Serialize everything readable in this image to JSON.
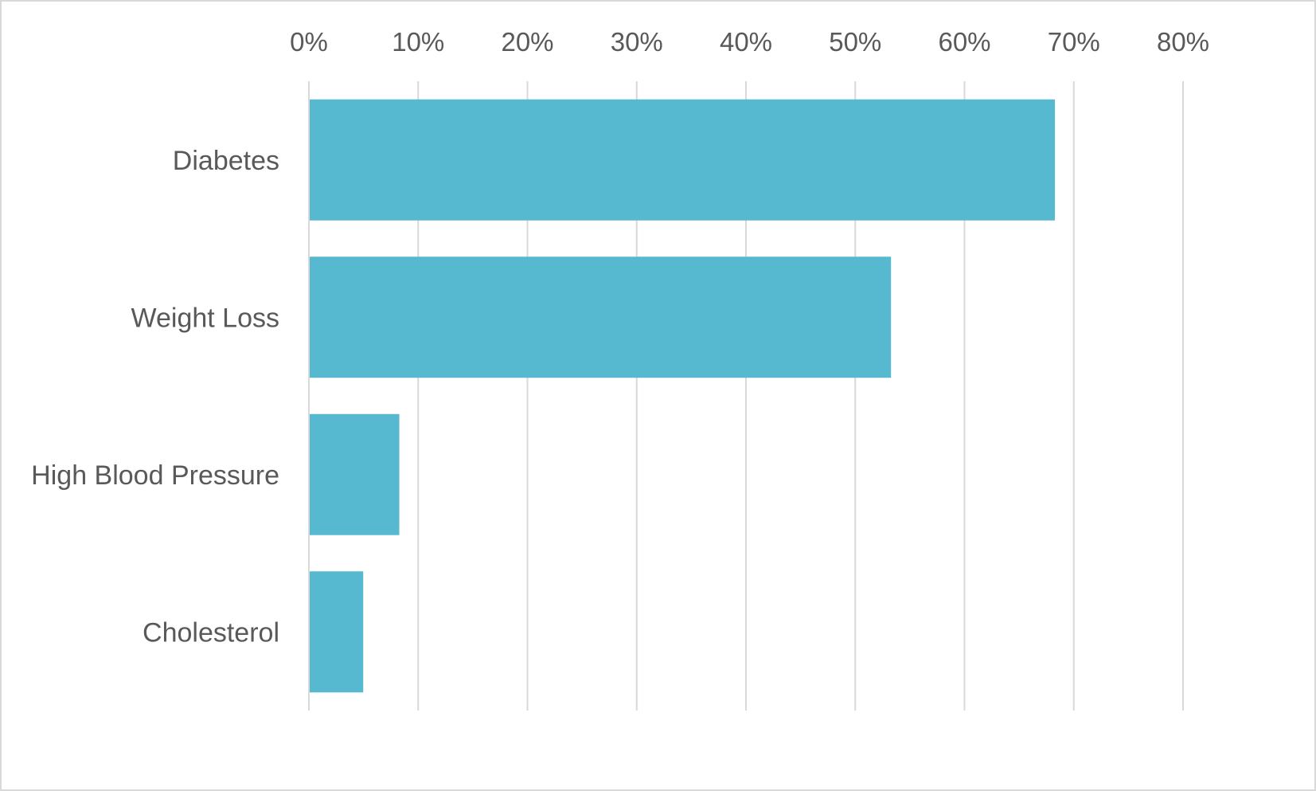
{
  "chart_data": {
    "type": "bar",
    "orientation": "horizontal",
    "title": "",
    "xlabel": "",
    "ylabel": "",
    "categories": [
      "Diabetes",
      "Weight Loss",
      "High Blood Pressure",
      "Cholesterol"
    ],
    "values": [
      0.682,
      0.532,
      0.082,
      0.049
    ],
    "value_format": "percent",
    "xlim": [
      0,
      0.8
    ],
    "x_ticks": [
      0,
      0.1,
      0.2,
      0.3,
      0.4,
      0.5,
      0.6,
      0.7,
      0.8
    ],
    "x_tick_labels": [
      "0%",
      "10%",
      "20%",
      "30%",
      "40%",
      "50%",
      "60%",
      "70%",
      "80%"
    ],
    "x_axis_position": "top",
    "grid": true,
    "legend": false,
    "colors": {
      "bar": "#56b9cf",
      "grid": "#d9d9d9",
      "text": "#595959",
      "border": "#d9d9d9"
    }
  }
}
